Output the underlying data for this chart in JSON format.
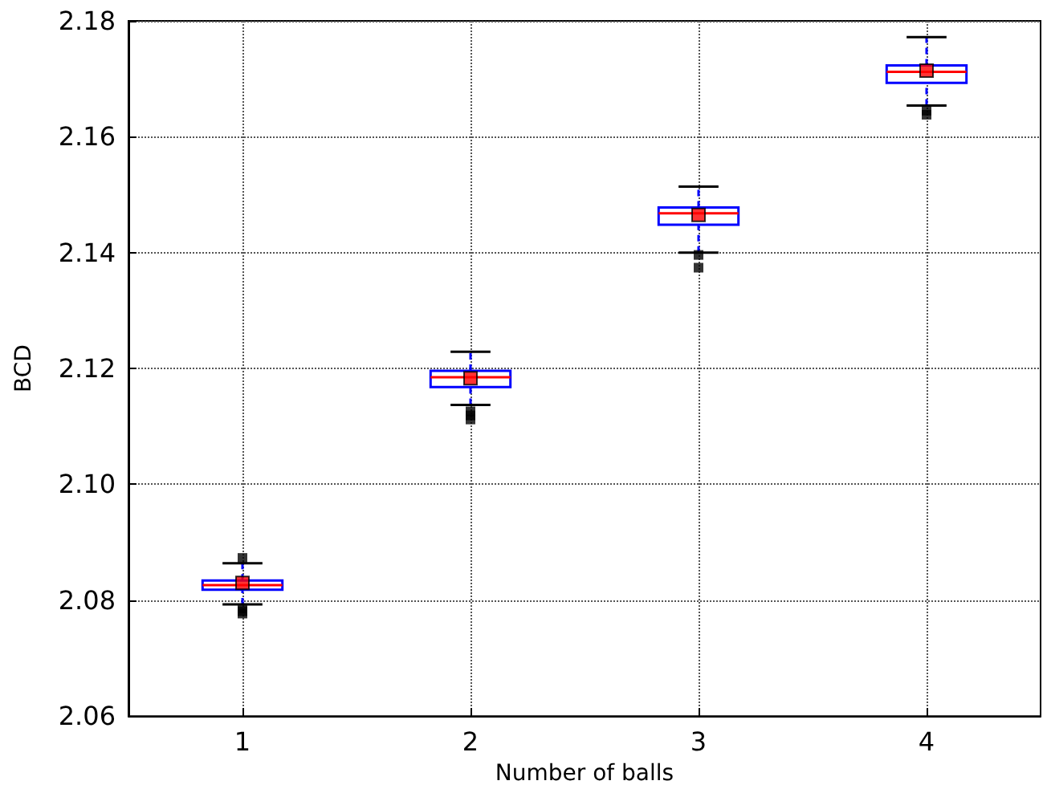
{
  "chart_data": {
    "type": "box",
    "xlabel": "Number of balls",
    "ylabel": "BCD",
    "categories": [
      "1",
      "2",
      "3",
      "4"
    ],
    "boxes": [
      {
        "low": 2.0793,
        "q1": 2.0818,
        "median": 2.0826,
        "q3": 2.0834,
        "high": 2.0864,
        "mean": 2.083,
        "outliers": [
          2.0873,
          2.0786,
          2.0781,
          2.0777
        ]
      },
      {
        "low": 2.1137,
        "q1": 2.1168,
        "median": 2.1185,
        "q3": 2.1196,
        "high": 2.1229,
        "mean": 2.1183,
        "outliers": [
          2.1126,
          2.1119,
          2.1112
        ]
      },
      {
        "low": 2.14,
        "q1": 2.1448,
        "median": 2.1468,
        "q3": 2.1478,
        "high": 2.1514,
        "mean": 2.1465,
        "outliers": [
          2.1396,
          2.1374
        ]
      },
      {
        "low": 2.1654,
        "q1": 2.1693,
        "median": 2.1712,
        "q3": 2.1723,
        "high": 2.1772,
        "mean": 2.1714,
        "outliers": [
          2.1645,
          2.1638
        ]
      }
    ],
    "color": "#0000ff",
    "ylim": [
      2.06,
      2.18
    ],
    "yticks": [
      2.06,
      2.08,
      {
        "value": 2.1,
        "label": "2.10"
      },
      2.12,
      2.14,
      2.16,
      2.18
    ],
    "grid": true,
    "legend": false
  }
}
